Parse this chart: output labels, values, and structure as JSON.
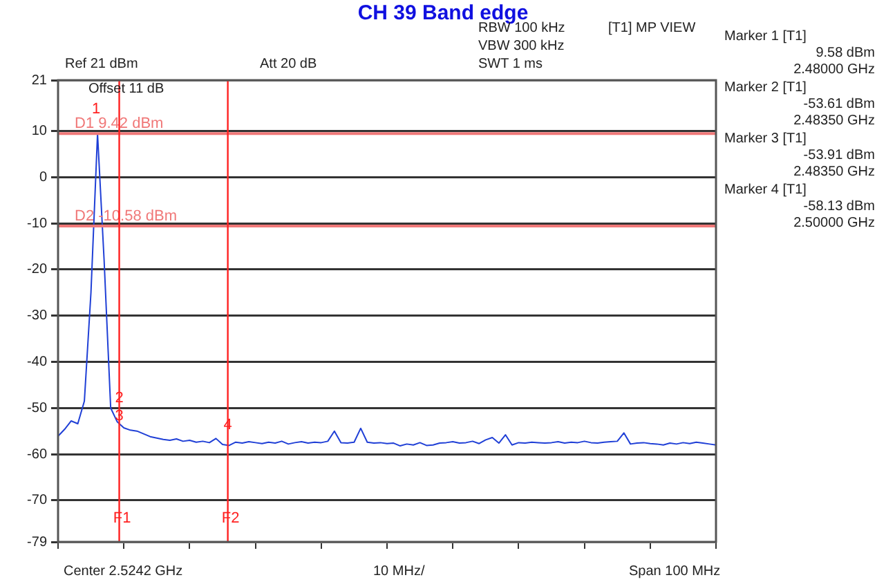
{
  "chart_data": {
    "type": "line",
    "title": "CH 39 Band edge",
    "annotations": [
      "Ref 21 dBm",
      "Att 20 dB",
      "Offset 11 dB",
      "RBW 100 kHz",
      "VBW 300 kHz",
      "SWT 1 ms",
      "[T1] MP VIEW",
      "Marker 1 [T1]",
      "9.58 dBm",
      "2.48000 GHz",
      "Marker 2 [T1]",
      "-53.61 dBm",
      "2.48350 GHz",
      "Marker 3 [T1]",
      "-53.91 dBm",
      "2.48350 GHz",
      "Marker 4 [T1]",
      "-58.13 dBm",
      "2.50000 GHz",
      "Center 2.5242 GHz",
      "10 MHz/",
      "Span 100 MHz",
      {
        "text": "1",
        "y": 9.58
      },
      {
        "text": "2",
        "y": -53.61
      },
      {
        "text": "3",
        "y": -53.91
      },
      {
        "text": "4",
        "y": -58.13
      }
    ],
    "categories": [
      null,
      null,
      null,
      null,
      null,
      null,
      null,
      null,
      null,
      null,
      null,
      null,
      null,
      null,
      null,
      null,
      null,
      null,
      null,
      null,
      null,
      null,
      null,
      null,
      null,
      null,
      null,
      null,
      null,
      null,
      null,
      null,
      null,
      null,
      null,
      null,
      null,
      null,
      null,
      null,
      null,
      null,
      null,
      null,
      null,
      null,
      null,
      null,
      null,
      null,
      null,
      null,
      null,
      null,
      null,
      null,
      null,
      null,
      null,
      null,
      null,
      null,
      null,
      null,
      null,
      null,
      null,
      null,
      null,
      null,
      null,
      null,
      null,
      null,
      null,
      null,
      null,
      null,
      null,
      null,
      null,
      null,
      null,
      null,
      null,
      null,
      null,
      null,
      null,
      null,
      null,
      null,
      null,
      null,
      null,
      null,
      null,
      null,
      null,
      null,
      null
    ],
    "series": [
      {
        "color": "#1f3fd6",
        "values": [
          -56.1,
          -54.6,
          -52.8,
          -53.4,
          -48.5,
          -25,
          9.4,
          -18,
          -50,
          -53,
          -54.3,
          -54.8,
          -55,
          -55.6,
          -56.2,
          -56.5,
          -56.8,
          -57,
          -56.7,
          -57.2,
          -57,
          -57.4,
          -57.2,
          -57.5,
          -56.6,
          -57.9,
          -58.1,
          -57.4,
          -57.6,
          -57.3,
          -57.5,
          -57.7,
          -57.4,
          -57.6,
          -57.2,
          -57.8,
          -57.5,
          -57.3,
          -57.6,
          -57.4,
          -57.5,
          -57.2,
          -55,
          -57.5,
          -57.6,
          -57.4,
          -54.4,
          -57.4,
          -57.6,
          -57.5,
          -57.7,
          -57.6,
          -58.2,
          -57.8,
          -58,
          -57.5,
          -58.1,
          -58,
          -57.6,
          -57.5,
          -57.3,
          -57.6,
          -57.5,
          -57.2,
          -57.7,
          -56.9,
          -56.4,
          -57.6,
          -55.8,
          -58,
          -57.5,
          -57.6,
          -57.4,
          -57.5,
          -57.6,
          -57.5,
          -57.3,
          -57.6,
          -57.4,
          -57.5,
          -57.2,
          -57.5,
          -57.6,
          -57.4,
          -57.3,
          -57.2,
          -55.4,
          -57.8,
          -57.6,
          -57.5,
          -57.7,
          -57.8,
          -58,
          -57.6,
          -57.8,
          -57.5,
          -57.7,
          -57.4,
          -57.6,
          -57.8,
          -58
        ]
      }
    ],
    "ylim": [
      -79,
      21
    ],
    "yticks": [
      21,
      10,
      0,
      -10,
      -20,
      -30,
      -40,
      -50,
      -60,
      -70,
      -79
    ],
    "ref_lines": [
      {
        "axis": "y",
        "value": 9.42,
        "label": "D1 9.42 dBm",
        "color": "#f07878"
      },
      {
        "axis": "y",
        "value": -10.58,
        "label": "D2 -10.58 dBm",
        "color": "#f07878"
      },
      {
        "axis": "x",
        "label": "F1",
        "color": "#ff2020"
      },
      {
        "axis": "x",
        "label": "F2",
        "color": "#ff2020"
      }
    ],
    "grid": "y",
    "legend": false,
    "marker": "none",
    "line_style": "solid"
  }
}
